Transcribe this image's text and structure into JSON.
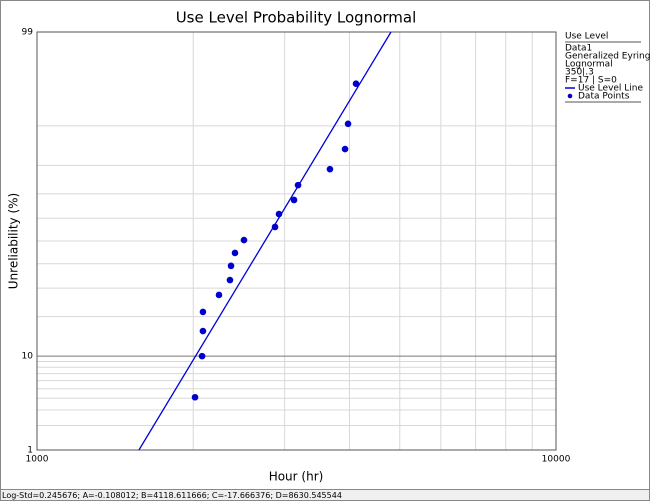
{
  "chart_data": {
    "type": "probability",
    "title": "Use Level Probability Lognormal",
    "xlabel": "Hour (hr)",
    "ylabel": "Unreliability (%)",
    "xscale": "log",
    "yscale": "normal-probability",
    "xlim": [
      1000,
      10000
    ],
    "ylim": [
      1,
      99
    ],
    "xticks": [
      1000,
      10000
    ],
    "yticks": [
      1,
      10,
      99
    ],
    "xgrid_minor": [
      2000,
      3000,
      4000,
      5000,
      6000,
      7000,
      8000,
      9000
    ],
    "ygrid_minor": [
      2,
      3,
      4,
      5,
      6,
      7,
      8,
      9,
      20,
      30,
      40,
      50,
      60,
      70,
      80,
      90
    ],
    "grid": true,
    "legend": {
      "title": "Use Level",
      "lines": [
        "Data1",
        "Generalized Eyring",
        "Lognormal",
        "350|.3",
        "F=17 | S=0"
      ],
      "position": "right"
    },
    "series": [
      {
        "name": "Use Level Line",
        "kind": "line",
        "color": "#0000dd",
        "x": [
          1572,
          4809
        ],
        "values": [
          1,
          99
        ]
      },
      {
        "name": "Data Points",
        "kind": "points",
        "color": "#0000cc",
        "x": [
          2016,
          2080,
          2088,
          2088,
          2242,
          2354,
          2365,
          2407,
          2505,
          2875,
          2926,
          3128,
          3184,
          3668,
          3922,
          3975,
          4118
        ],
        "values": [
          4.1,
          10.0,
          15.8,
          21.5,
          27.4,
          33.2,
          39.1,
          44.7,
          50.4,
          56.2,
          61.8,
          67.6,
          73.3,
          78.8,
          84.7,
          90.4,
          96.0
        ]
      }
    ],
    "footer": "Log-Std=0.245676; A=-0.108012; B=4118.611666; C=-17.666376; D=8630.545544"
  }
}
